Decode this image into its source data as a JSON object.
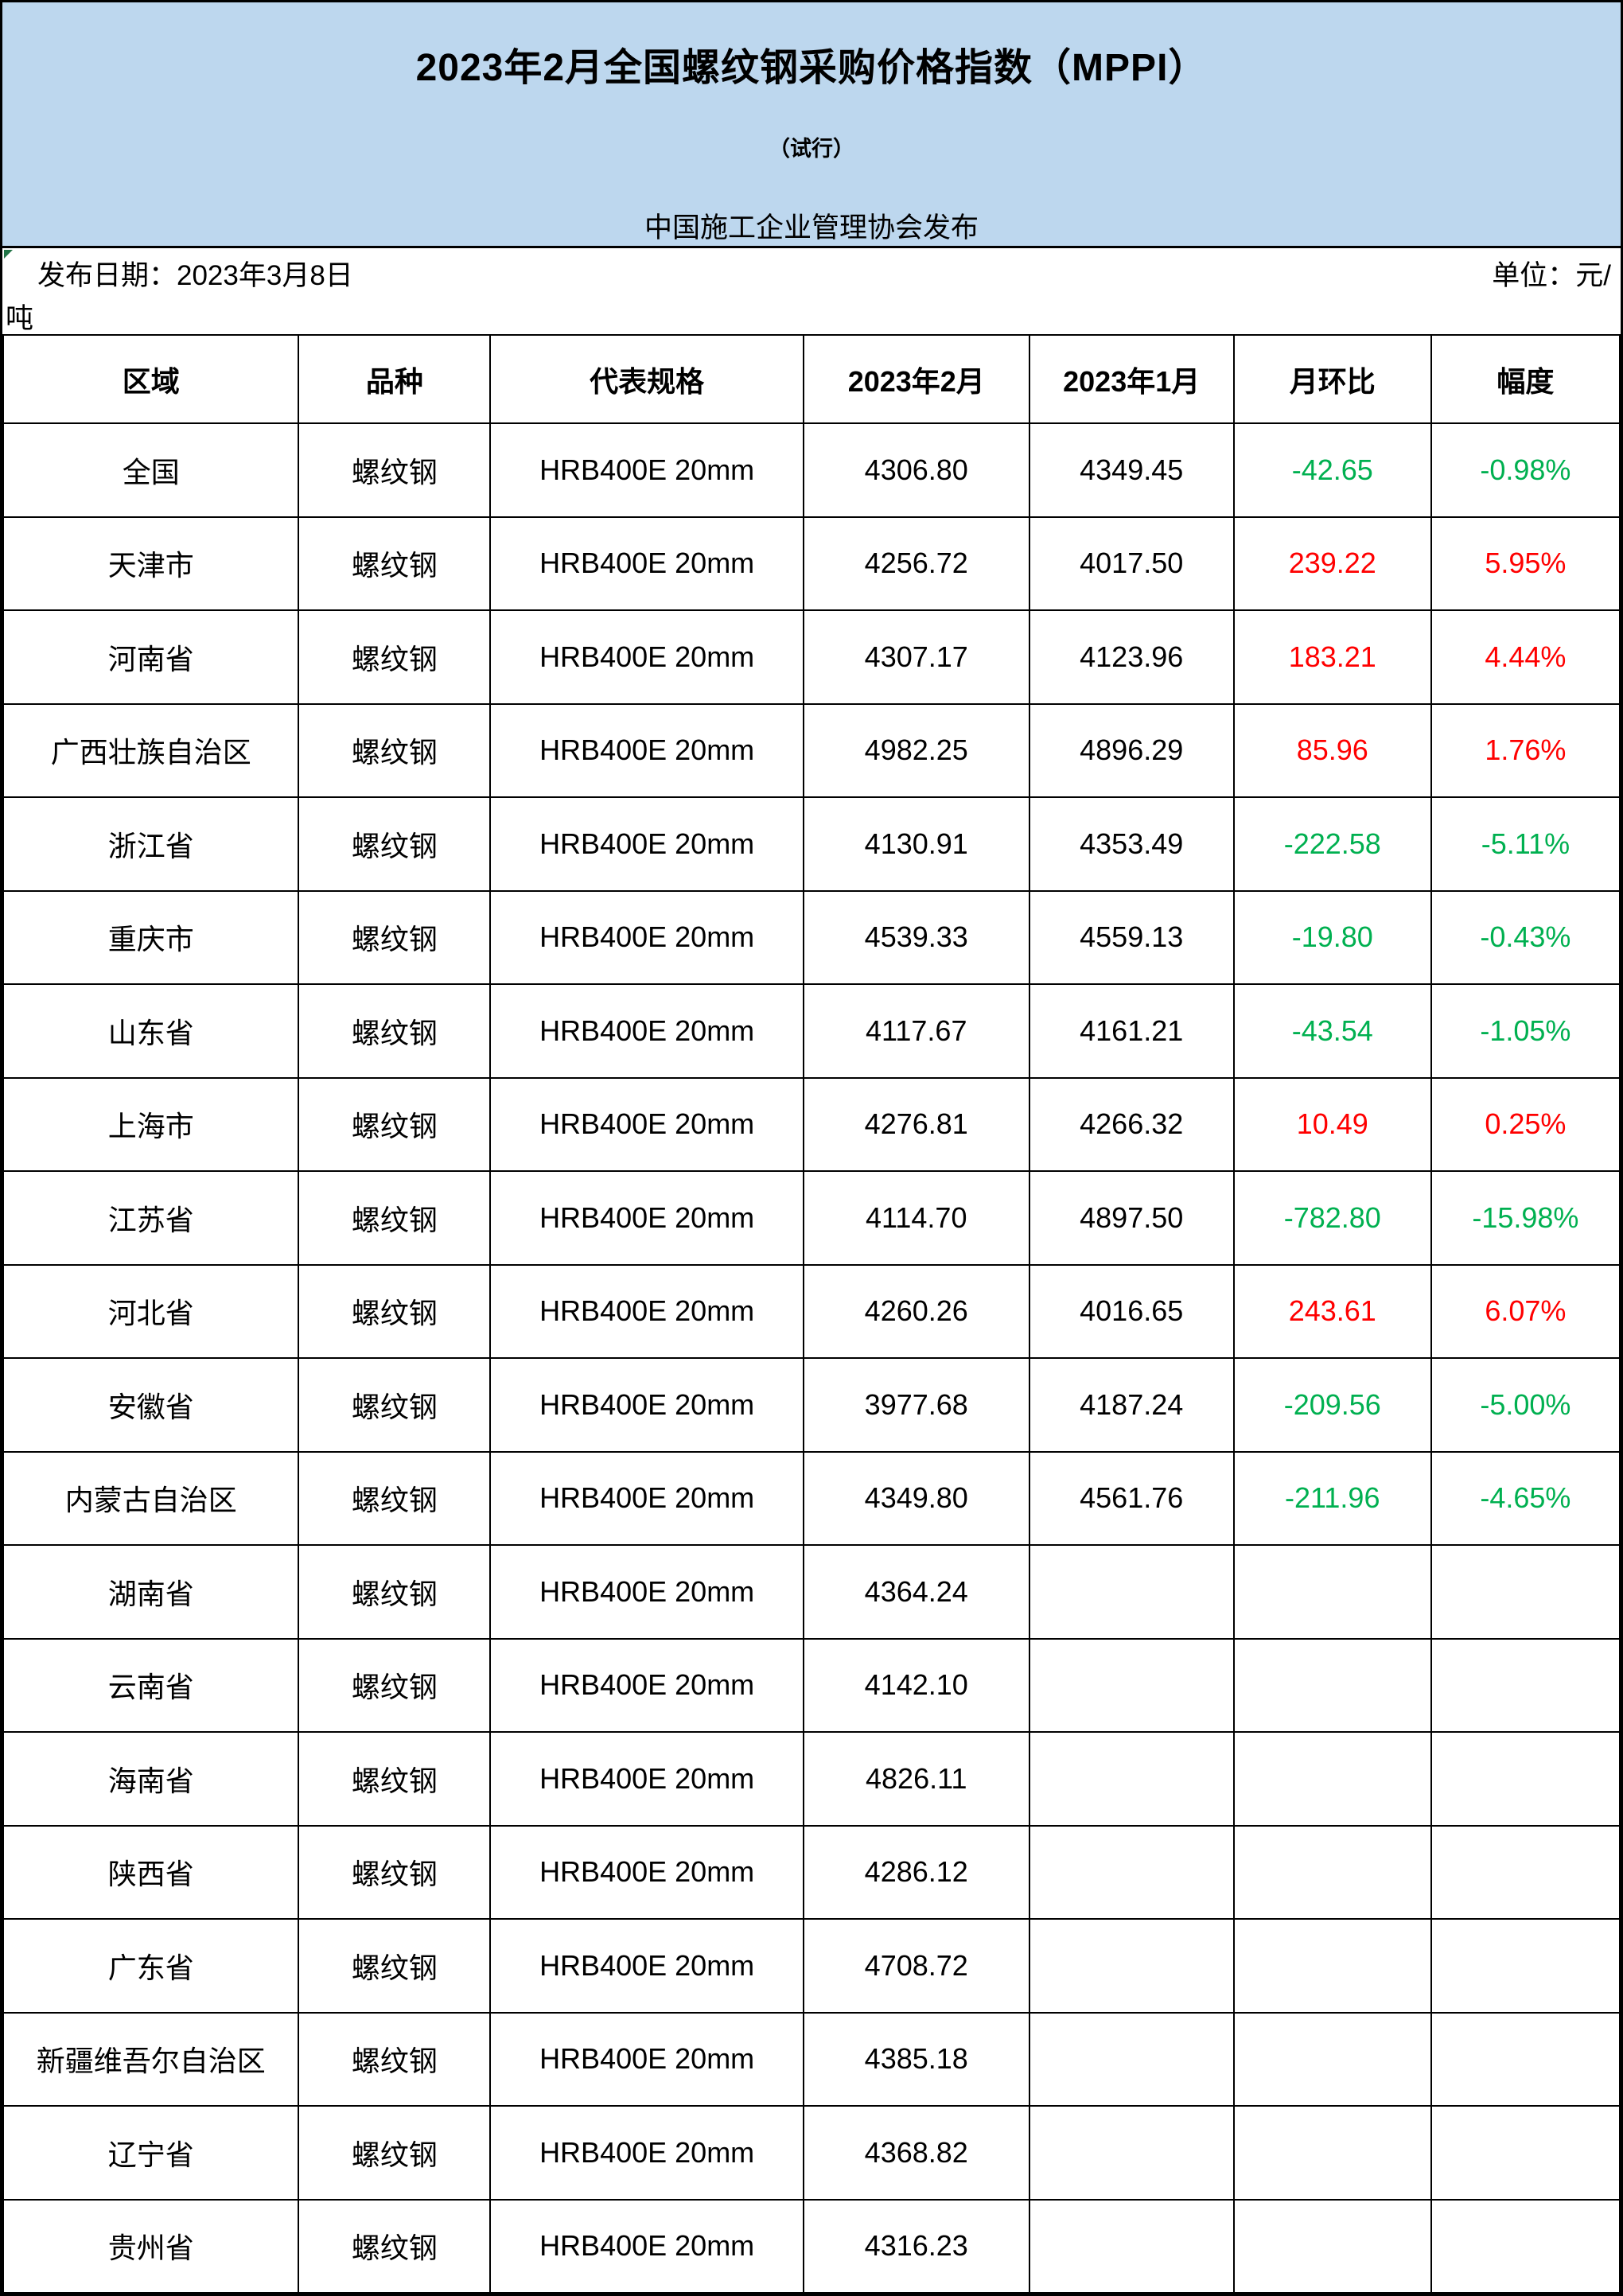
{
  "header": {
    "title": "2023年2月全国螺纹钢采购价格指数（MPPI）",
    "subtitle": "（试行）",
    "publisher": "中国施工企业管理协会发布"
  },
  "meta": {
    "publish_date": "发布日期：2023年3月8日",
    "unit_line1": "单位：元/",
    "unit_wrap": "吨"
  },
  "table": {
    "columns": [
      "区域",
      "品种",
      "代表规格",
      "2023年2月",
      "2023年1月",
      "月环比",
      "幅度"
    ],
    "rows": [
      {
        "region": "全国",
        "product": "螺纹钢",
        "spec": "HRB400E 20mm",
        "feb": "4306.80",
        "jan": "4349.45",
        "mom": "-42.65",
        "pct": "-0.98%"
      },
      {
        "region": "天津市",
        "product": "螺纹钢",
        "spec": "HRB400E 20mm",
        "feb": "4256.72",
        "jan": "4017.50",
        "mom": "239.22",
        "pct": "5.95%"
      },
      {
        "region": "河南省",
        "product": "螺纹钢",
        "spec": "HRB400E 20mm",
        "feb": "4307.17",
        "jan": "4123.96",
        "mom": "183.21",
        "pct": "4.44%"
      },
      {
        "region": "广西壮族自治区",
        "product": "螺纹钢",
        "spec": "HRB400E 20mm",
        "feb": "4982.25",
        "jan": "4896.29",
        "mom": "85.96",
        "pct": "1.76%"
      },
      {
        "region": "浙江省",
        "product": "螺纹钢",
        "spec": "HRB400E 20mm",
        "feb": "4130.91",
        "jan": "4353.49",
        "mom": "-222.58",
        "pct": "-5.11%"
      },
      {
        "region": "重庆市",
        "product": "螺纹钢",
        "spec": "HRB400E 20mm",
        "feb": "4539.33",
        "jan": "4559.13",
        "mom": "-19.80",
        "pct": "-0.43%"
      },
      {
        "region": "山东省",
        "product": "螺纹钢",
        "spec": "HRB400E 20mm",
        "feb": "4117.67",
        "jan": "4161.21",
        "mom": "-43.54",
        "pct": "-1.05%"
      },
      {
        "region": "上海市",
        "product": "螺纹钢",
        "spec": "HRB400E 20mm",
        "feb": "4276.81",
        "jan": "4266.32",
        "mom": "10.49",
        "pct": "0.25%"
      },
      {
        "region": "江苏省",
        "product": "螺纹钢",
        "spec": "HRB400E 20mm",
        "feb": "4114.70",
        "jan": "4897.50",
        "mom": "-782.80",
        "pct": "-15.98%"
      },
      {
        "region": "河北省",
        "product": "螺纹钢",
        "spec": "HRB400E 20mm",
        "feb": "4260.26",
        "jan": "4016.65",
        "mom": "243.61",
        "pct": "6.07%"
      },
      {
        "region": "安徽省",
        "product": "螺纹钢",
        "spec": "HRB400E 20mm",
        "feb": "3977.68",
        "jan": "4187.24",
        "mom": "-209.56",
        "pct": "-5.00%"
      },
      {
        "region": "内蒙古自治区",
        "product": "螺纹钢",
        "spec": "HRB400E 20mm",
        "feb": "4349.80",
        "jan": "4561.76",
        "mom": "-211.96",
        "pct": "-4.65%"
      },
      {
        "region": "湖南省",
        "product": "螺纹钢",
        "spec": "HRB400E 20mm",
        "feb": "4364.24",
        "jan": "",
        "mom": "",
        "pct": ""
      },
      {
        "region": "云南省",
        "product": "螺纹钢",
        "spec": "HRB400E 20mm",
        "feb": "4142.10",
        "jan": "",
        "mom": "",
        "pct": ""
      },
      {
        "region": "海南省",
        "product": "螺纹钢",
        "spec": "HRB400E 20mm",
        "feb": "4826.11",
        "jan": "",
        "mom": "",
        "pct": ""
      },
      {
        "region": "陕西省",
        "product": "螺纹钢",
        "spec": "HRB400E 20mm",
        "feb": "4286.12",
        "jan": "",
        "mom": "",
        "pct": ""
      },
      {
        "region": "广东省",
        "product": "螺纹钢",
        "spec": "HRB400E 20mm",
        "feb": "4708.72",
        "jan": "",
        "mom": "",
        "pct": ""
      },
      {
        "region": "新疆维吾尔自治区",
        "product": "螺纹钢",
        "spec": "HRB400E 20mm",
        "feb": "4385.18",
        "jan": "",
        "mom": "",
        "pct": ""
      },
      {
        "region": "辽宁省",
        "product": "螺纹钢",
        "spec": "HRB400E 20mm",
        "feb": "4368.82",
        "jan": "",
        "mom": "",
        "pct": ""
      },
      {
        "region": "贵州省",
        "product": "螺纹钢",
        "spec": "HRB400E 20mm",
        "feb": "4316.23",
        "jan": "",
        "mom": "",
        "pct": ""
      }
    ],
    "column_widths_pct": [
      18.28,
      11.86,
      19.36,
      13.97,
      12.65,
      12.21,
      11.67
    ]
  },
  "colors": {
    "banner_bg": "#BDD7EE",
    "increase_red": "#FF0000",
    "decrease_green": "#00B050",
    "border_black": "#000000",
    "flag_green": "#217346"
  }
}
